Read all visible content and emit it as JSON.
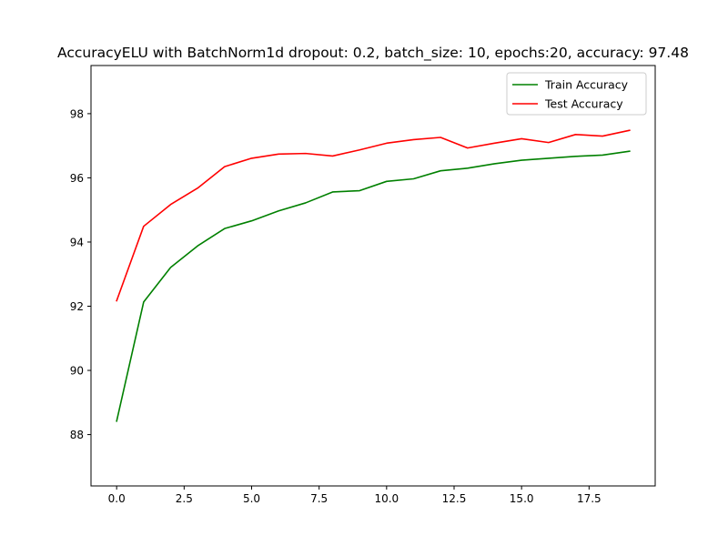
{
  "chart_data": {
    "type": "line",
    "title": "AccuracyELU with BatchNorm1d dropout: 0.2, batch_size: 10, epochs:20, accuracy: 97.48",
    "xlabel": "",
    "ylabel": "",
    "x": [
      0,
      1,
      2,
      3,
      4,
      5,
      6,
      7,
      8,
      9,
      10,
      11,
      12,
      13,
      14,
      15,
      16,
      17,
      18,
      19
    ],
    "xlim": [
      -0.95,
      19.95
    ],
    "ylim": [
      86.4,
      99.5
    ],
    "xticks": [
      0,
      2.5,
      5,
      7.5,
      10,
      12.5,
      15,
      17.5
    ],
    "xtick_labels": [
      "0.0",
      "2.5",
      "5.0",
      "7.5",
      "10.0",
      "12.5",
      "15.0",
      "17.5"
    ],
    "yticks": [
      88,
      90,
      92,
      94,
      96,
      98
    ],
    "ytick_labels": [
      "88",
      "90",
      "92",
      "94",
      "96",
      "98"
    ],
    "grid": false,
    "legend_position": "top-right",
    "series": [
      {
        "name": "Train Accuracy",
        "color": "#008000",
        "values": [
          88.42,
          92.13,
          93.21,
          93.88,
          94.42,
          94.66,
          94.97,
          95.22,
          95.56,
          95.6,
          95.89,
          95.97,
          96.22,
          96.3,
          96.44,
          96.55,
          96.61,
          96.67,
          96.71,
          96.83
        ]
      },
      {
        "name": "Test Accuracy",
        "color": "#ff0000",
        "values": [
          92.17,
          94.49,
          95.17,
          95.68,
          96.35,
          96.61,
          96.74,
          96.76,
          96.68,
          96.87,
          97.08,
          97.19,
          97.26,
          96.93,
          97.08,
          97.22,
          97.1,
          97.35,
          97.3,
          97.48
        ]
      }
    ]
  }
}
